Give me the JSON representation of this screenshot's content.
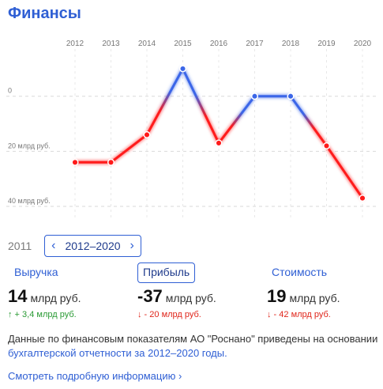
{
  "title": "Финансы",
  "chart_data": {
    "type": "line",
    "x": [
      "2012",
      "2013",
      "2014",
      "2015",
      "2016",
      "2017",
      "2018",
      "2019",
      "2020"
    ],
    "series": [
      {
        "values": [
          -24,
          -24,
          -14,
          10,
          -17,
          0,
          0,
          -18,
          -37
        ]
      }
    ],
    "y_ticks": [
      {
        "value": 0,
        "label": "0"
      },
      {
        "value": -20,
        "label": "20 млрд руб."
      },
      {
        "value": -40,
        "label": "40 млрд руб."
      }
    ],
    "ylim": [
      -42,
      16
    ],
    "colors": {
      "positive": "#3b66e8",
      "negative": "#ff1a1a",
      "grid": "#d9d9d9",
      "axis_text": "#777777"
    }
  },
  "period": {
    "previous_year": "2011",
    "range": "2012–2020"
  },
  "metrics": [
    {
      "label": "Выручка",
      "value": "14",
      "unit": "млрд руб.",
      "delta": "↑ + 3,4 млрд руб.",
      "trend": "up",
      "active": false
    },
    {
      "label": "Прибыль",
      "value": "-37",
      "unit": "млрд руб.",
      "delta": "↓ - 20 млрд руб.",
      "trend": "down",
      "active": true
    },
    {
      "label": "Стоимость",
      "value": "19",
      "unit": "млрд руб.",
      "delta": "↓ - 42 млрд руб.",
      "trend": "down",
      "active": false
    }
  ],
  "note": {
    "text": "Данные по финансовым показателям АО \"Роснано\" приведены на основании ",
    "link": "бухгалтерской отчетности за 2012–2020 годы."
  },
  "more_link": "Смотреть подробную информацию ›"
}
